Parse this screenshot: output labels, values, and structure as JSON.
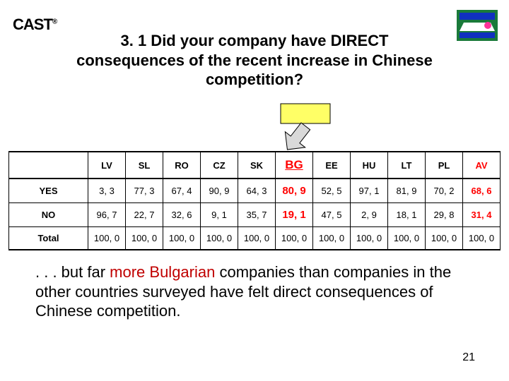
{
  "logo_left": "CAST",
  "title": "3. 1 Did your company have DIRECT consequences of the recent increase in Chinese competition?",
  "arrow": {
    "box_fill": "#ffff66",
    "box_stroke": "#000000",
    "arrow_fill": "#d9d9d9",
    "arrow_stroke": "#000000"
  },
  "table": {
    "columns": [
      "LV",
      "SL",
      "RO",
      "CZ",
      "SK",
      "BG",
      "EE",
      "HU",
      "LT",
      "PL",
      "AV"
    ],
    "highlight_col_index": 5,
    "highlight_last_col_index": 10,
    "highlight_header_color": "#ff0000",
    "highlight_cell_color": "#ff0000",
    "highlight_last_color": "#ff0000",
    "header_fontsize": 14,
    "cell_fontsize": 13,
    "rows": [
      {
        "label": "YES",
        "values": [
          "3, 3",
          "77, 3",
          "67, 4",
          "90, 9",
          "64, 3",
          "80, 9",
          "52, 5",
          "97, 1",
          "81, 9",
          "70, 2",
          "68, 6"
        ]
      },
      {
        "label": "NO",
        "values": [
          "96, 7",
          "22, 7",
          "32, 6",
          "9, 1",
          "35, 7",
          "19, 1",
          "47, 5",
          "2, 9",
          "18, 1",
          "29, 8",
          "31, 4"
        ]
      },
      {
        "label": "Total",
        "values": [
          "100, 0",
          "100, 0",
          "100, 0",
          "100, 0",
          "100, 0",
          "100, 0",
          "100, 0",
          "100, 0",
          "100, 0",
          "100, 0",
          "100, 0"
        ]
      }
    ]
  },
  "commentary": {
    "pre": ". . . but far ",
    "hl": "more Bulgarian",
    "post": " companies than companies in the other countries surveyed have felt direct consequences of Chinese competition."
  },
  "page_number": "21",
  "logo_right": {
    "bg": "#1a7a3a",
    "accent1": "#1030c0",
    "accent2": "#ffffff",
    "accent3": "#ff3399"
  }
}
